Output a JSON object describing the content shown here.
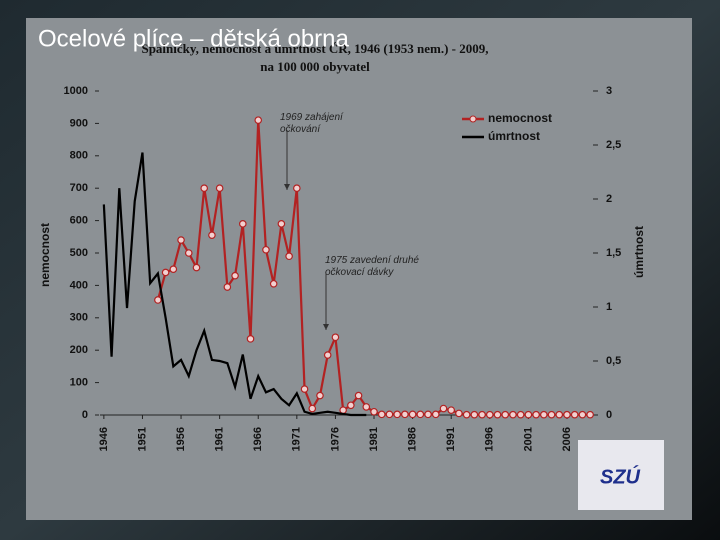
{
  "slide_title": "Ocelové plíce – dětská obrna",
  "logo": "SZÚ",
  "chart_data": {
    "type": "line",
    "title": "Spalničky, nemocnost a úmrtnost ČR, 1946 (1953 nem.) - 2009,",
    "subtitle": "na 100 000 obyvatel",
    "y_label": "nemocnost",
    "y2_label": "úmrtnost",
    "annotations": [
      "1969 zahájení očkování",
      "1975 zavedení druhé očkovací dávky"
    ],
    "x": [
      1946,
      1947,
      1948,
      1949,
      1950,
      1951,
      1952,
      1953,
      1954,
      1955,
      1956,
      1957,
      1958,
      1959,
      1960,
      1961,
      1962,
      1963,
      1964,
      1965,
      1966,
      1967,
      1968,
      1969,
      1970,
      1971,
      1972,
      1973,
      1974,
      1975,
      1976,
      1977,
      1978,
      1979,
      1980,
      1981,
      1982,
      1983,
      1984,
      1985,
      1986,
      1987,
      1988,
      1989,
      1990,
      1991,
      1992,
      1993,
      1994,
      1995,
      1996,
      1997,
      1998,
      1999,
      2000,
      2001,
      2002,
      2003,
      2004,
      2005,
      2006,
      2007,
      2008,
      2009
    ],
    "xlim": [
      1945.5,
      2009.5
    ],
    "xticks": [
      1946,
      1951,
      1956,
      1961,
      1966,
      1971,
      1976,
      1981,
      1986,
      1991,
      1996,
      2001,
      2006
    ],
    "ylim": [
      0,
      1000
    ],
    "yticks": [
      0,
      100,
      200,
      300,
      400,
      500,
      600,
      700,
      800,
      900,
      1000
    ],
    "y2lim": [
      0,
      3
    ],
    "y2ticks": [
      0,
      {
        "value": 0.5,
        "label": "0,5"
      },
      1,
      {
        "value": 1.5,
        "label": "1,5"
      },
      2,
      {
        "value": 2.5,
        "label": "2,5"
      },
      3
    ],
    "legend": "top-right",
    "series": [
      {
        "name": "nemocnost",
        "color": "#b22222",
        "markers": true,
        "values": [
          null,
          null,
          null,
          null,
          null,
          null,
          null,
          355,
          440,
          450,
          540,
          500,
          455,
          700,
          555,
          700,
          395,
          430,
          590,
          235,
          910,
          510,
          405,
          590,
          490,
          700,
          80,
          20,
          60,
          185,
          240,
          15,
          30,
          60,
          25,
          10,
          2,
          2,
          2,
          2,
          2,
          2,
          2,
          2,
          20,
          15,
          5,
          1,
          1,
          1,
          1,
          1,
          1,
          1,
          1,
          1,
          1,
          1,
          1,
          1,
          1,
          1,
          1,
          1
        ]
      },
      {
        "name": "úmrtnost",
        "color": "#000000",
        "axis": "y2",
        "values": [
          1.95,
          0.54,
          2.1,
          0.99,
          1.98,
          2.43,
          1.22,
          1.31,
          0.9,
          0.45,
          0.51,
          0.36,
          0.6,
          0.78,
          0.51,
          0.5,
          0.48,
          0.26,
          0.56,
          0.15,
          0.36,
          0.21,
          0.24,
          0.15,
          0.09,
          0.2,
          0.03,
          0.01,
          0.02,
          0.03,
          0.02,
          0.01,
          0,
          0,
          0,
          null,
          null,
          null,
          null,
          null,
          null,
          null,
          null,
          null,
          null,
          null,
          null,
          null,
          null,
          null,
          null,
          null,
          null,
          null,
          null,
          null,
          null,
          null,
          null,
          null,
          null,
          null,
          null,
          null
        ]
      }
    ]
  }
}
